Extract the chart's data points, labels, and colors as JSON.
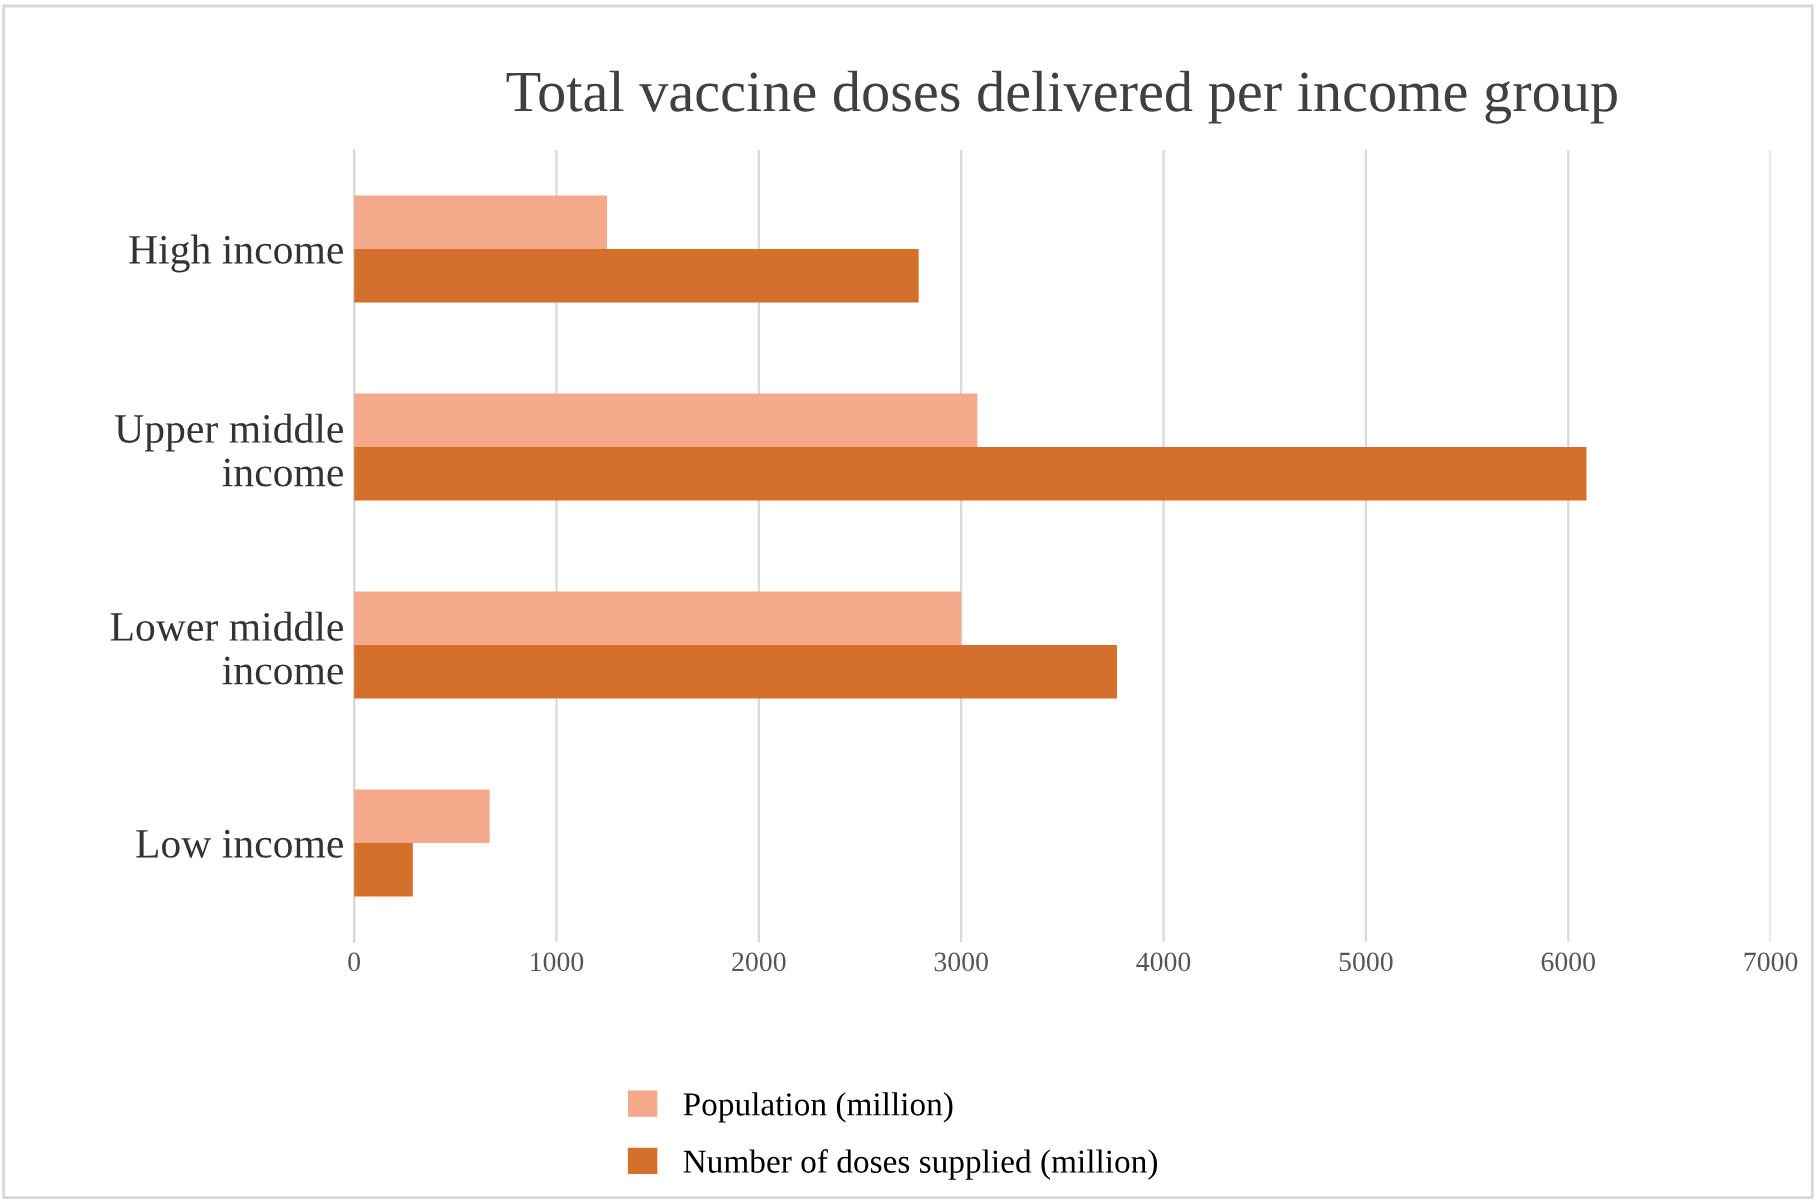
{
  "chart_data": {
    "type": "bar",
    "orientation": "horizontal",
    "title": "Total vaccine doses delivered per income group",
    "categories": [
      "High income",
      "Upper middle\nincome",
      "Lower middle\nincome",
      "Low income"
    ],
    "series": [
      {
        "name": "Population (million)",
        "color": "#f4a98a",
        "values": [
          1250,
          3080,
          3000,
          670
        ]
      },
      {
        "name": "Number of doses supplied (million)",
        "color": "#d4702c",
        "values": [
          2790,
          6090,
          3770,
          290
        ]
      }
    ],
    "xlim": [
      0,
      7000
    ],
    "xticks": [
      0,
      1000,
      2000,
      3000,
      4000,
      5000,
      6000,
      7000
    ],
    "grid": "x",
    "legend": "bottom"
  }
}
